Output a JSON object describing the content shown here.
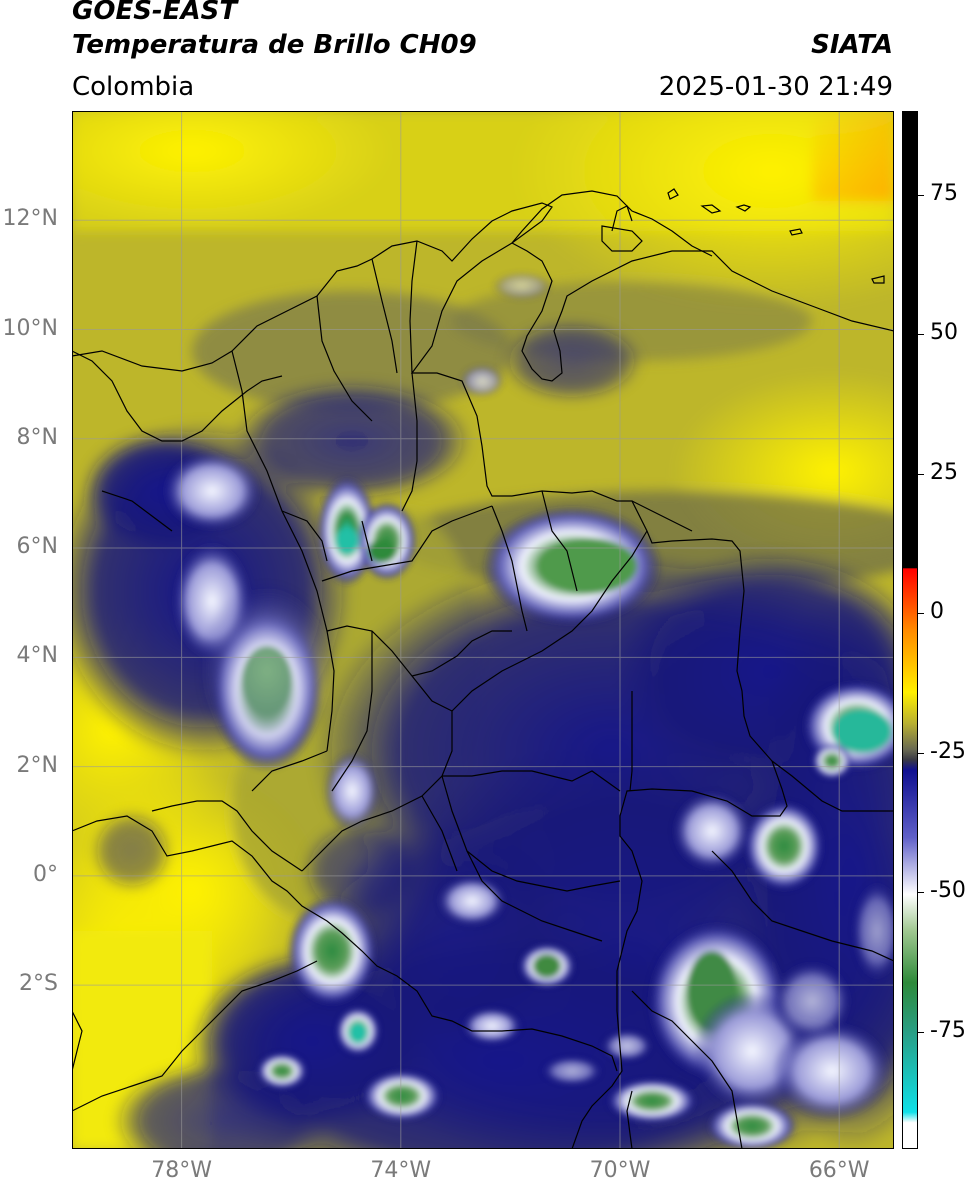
{
  "header": {
    "title_line1": "GOES-EAST",
    "title_line2": "Temperatura de Brillo CH09",
    "brand": "SIATA",
    "region": "Colombia",
    "timestamp": "2025-01-30 21:49"
  },
  "map": {
    "lon_range": [
      -80,
      -65
    ],
    "lat_range": [
      -5,
      14
    ],
    "lat_ticks": [
      {
        "value": 12,
        "label": "12°N"
      },
      {
        "value": 10,
        "label": "10°N"
      },
      {
        "value": 8,
        "label": "8°N"
      },
      {
        "value": 6,
        "label": "6°N"
      },
      {
        "value": 4,
        "label": "4°N"
      },
      {
        "value": 2,
        "label": "2°N"
      },
      {
        "value": 0,
        "label": "0°"
      },
      {
        "value": -2,
        "label": "2°S"
      }
    ],
    "lon_ticks": [
      {
        "value": -78,
        "label": "78°W"
      },
      {
        "value": -74,
        "label": "74°W"
      },
      {
        "value": -70,
        "label": "70°W"
      },
      {
        "value": -66,
        "label": "66°W"
      }
    ],
    "gridlines": true,
    "colors": {
      "warm": "#f5ec10",
      "mid": "#a8a535",
      "dark": "#5a5a4a",
      "cold": "#101080",
      "very_cold": "#f2f4ff",
      "coldest": "#2e8a3a",
      "extreme": "#20c8b0"
    }
  },
  "colorbar": {
    "ticks": [
      {
        "value": 75,
        "label": "75"
      },
      {
        "value": 50,
        "label": "50"
      },
      {
        "value": 25,
        "label": "25"
      },
      {
        "value": 0,
        "label": "0"
      },
      {
        "value": -25,
        "label": "-25"
      },
      {
        "value": -50,
        "label": "-50"
      },
      {
        "value": -75,
        "label": "-75"
      }
    ],
    "range": [
      -96,
      90
    ]
  }
}
